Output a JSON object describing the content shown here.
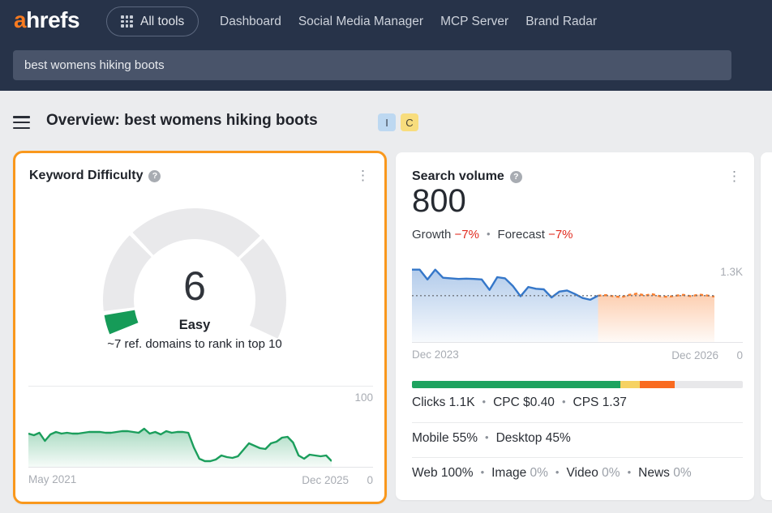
{
  "navbar": {
    "logo_a": "a",
    "logo_rest": "hrefs",
    "all_tools_label": "All tools",
    "items": [
      "Dashboard",
      "Social Media Manager",
      "MCP Server",
      "Brand Radar"
    ],
    "search_value": "best womens hiking boots"
  },
  "page": {
    "title": "Overview: best womens hiking boots",
    "badges": [
      {
        "label": "I",
        "bg": "#bdd8f1",
        "color": "#39414d"
      },
      {
        "label": "C",
        "bg": "#f8dd7d",
        "color": "#4b4636"
      }
    ]
  },
  "icons": {
    "help": "?",
    "kebab": "⋮"
  },
  "kd_card": {
    "title": "Keyword Difficulty",
    "value": "6",
    "level": "Easy",
    "subtitle": "~7 ref. domains to rank in top 10",
    "axis": {
      "top": "100",
      "left": "May 2021",
      "right": "Dec 2025",
      "zero": "0"
    }
  },
  "volume_card": {
    "title": "Search volume",
    "value": "800",
    "growth_label": "Growth",
    "growth_value": "−7%",
    "forecast_label": "Forecast",
    "forecast_value": "−7%",
    "axis": {
      "top": "1.3K",
      "left": "Dec 2023",
      "right": "Dec 2026",
      "zero": "0"
    },
    "distribution_bar": {
      "segments": [
        {
          "name": "green",
          "color": "#1da35f",
          "pct": 63
        },
        {
          "name": "yellow",
          "color": "#f6d263",
          "pct": 5.9
        },
        {
          "name": "orange",
          "color": "#f96a1f",
          "pct": 10.5
        },
        {
          "name": "gray",
          "color": "#e8e8ea",
          "pct": 20.6
        }
      ]
    },
    "stats": [
      {
        "items": [
          {
            "label": "Clicks",
            "value": "1.1K"
          },
          {
            "label": "CPC",
            "value": "$0.40"
          },
          {
            "label": "CPS",
            "value": "1.37"
          }
        ]
      },
      {
        "items": [
          {
            "label": "Mobile",
            "value": "55%"
          },
          {
            "label": "Desktop",
            "value": "45%"
          }
        ]
      },
      {
        "items": [
          {
            "label": "Web",
            "value": "100%"
          },
          {
            "label": "Image",
            "value": "0%",
            "muted": true
          },
          {
            "label": "Video",
            "value": "0%",
            "muted": true
          },
          {
            "label": "News",
            "value": "0%",
            "muted": true
          }
        ]
      }
    ]
  },
  "chart_data": [
    {
      "type": "gauge",
      "title": "Keyword Difficulty",
      "value": 6,
      "max": 100,
      "label": "Easy",
      "start_angle": 202,
      "end_angle": -25,
      "segments": [
        {
          "from": 0,
          "to": 6,
          "color": "#169b58"
        },
        {
          "from": 6,
          "to": 30,
          "color": "#e9e9eb"
        },
        {
          "from": 30,
          "to": 70,
          "color": "#e9e9eb"
        },
        {
          "from": 70,
          "to": 100,
          "color": "#e9e9eb"
        }
      ]
    },
    {
      "type": "area",
      "title": "Keyword Difficulty history",
      "x_start": "May 2021",
      "x_end": "Dec 2025",
      "ylim": [
        0,
        100
      ],
      "line_color": "#1b9e5c",
      "values": [
        41,
        39,
        42,
        32,
        40,
        43,
        41,
        42,
        41,
        41,
        42,
        43,
        43,
        43,
        42,
        42,
        43,
        44,
        44,
        43,
        42,
        47,
        41,
        43,
        40,
        44,
        42,
        43,
        43,
        42,
        24,
        10,
        7,
        7,
        9,
        14,
        12,
        11,
        13,
        21,
        29,
        26,
        23,
        22,
        29,
        31,
        36,
        37,
        30,
        14,
        10,
        15,
        14,
        13,
        14,
        7
      ]
    },
    {
      "type": "area",
      "title": "Search volume trend",
      "x_start": "Dec 2023",
      "x_end": "Dec 2026",
      "ylim": [
        0,
        1400
      ],
      "gridline_label": "1.3K",
      "dotted_value": 800,
      "series": [
        {
          "name": "history",
          "color": "#3577c9",
          "style": "solid",
          "values": [
            1250,
            1250,
            1080,
            1250,
            1110,
            1100,
            1090,
            1095,
            1090,
            1080,
            900,
            1120,
            1100,
            970,
            790,
            950,
            920,
            910,
            770,
            870,
            890,
            830,
            760,
            730,
            800
          ]
        },
        {
          "name": "forecast",
          "color": "#f97e2e",
          "style": "dashed",
          "values": [
            800,
            810,
            790,
            775,
            815,
            835,
            805,
            825,
            790,
            780,
            800,
            815,
            790,
            820,
            805,
            785
          ]
        }
      ]
    }
  ]
}
